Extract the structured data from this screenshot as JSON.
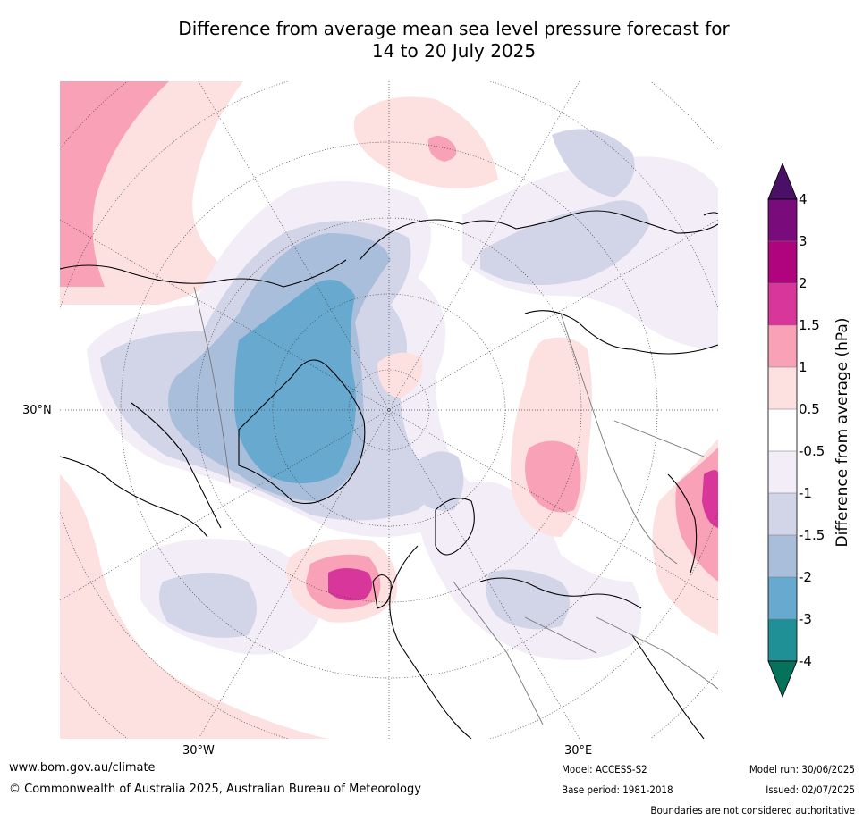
{
  "title_line1": "Difference from average mean sea level pressure forecast for",
  "title_line2": "14 to 20 July 2025",
  "map": {
    "projection": "north-polar-stereographic",
    "lon_labels": [
      "30°W",
      "30°E"
    ],
    "lat_labels": [
      "30°N"
    ]
  },
  "colorbar": {
    "label": "Difference from average (hPa)",
    "ticks": [
      "4",
      "3",
      "2",
      "1.5",
      "1",
      "0.5",
      "-0.5",
      "-1",
      "-1.5",
      "-2",
      "-3",
      "-4"
    ],
    "colors": {
      "over_4": "#4a0f66",
      "3_to_4": "#7a0b7a",
      "2_to_3": "#b0047e",
      "1_5_to_2": "#d9369b",
      "1_to_1_5": "#f8a1b7",
      "0_5_to_1": "#fde0e0",
      "neutral": "#ffffff",
      "m1_to_m0_5": "#f2edf6",
      "m1_5_to_m1": "#d2d4e7",
      "m2_to_m1_5": "#a9bedb",
      "m3_to_m2": "#67a9cf",
      "m4_to_m3": "#1f9196",
      "under_m4": "#05735b"
    }
  },
  "footer": {
    "website": "www.bom.gov.au/climate",
    "copyright": "© Commonwealth of Australia 2025, Australian Bureau of Meteorology",
    "model": "Model: ACCESS-S2",
    "base_period": "Base period: 1981-2018",
    "model_run": "Model run: 30/06/2025",
    "issued": "Issued: 02/07/2025",
    "disclaimer": "Boundaries are not considered authoritative"
  }
}
